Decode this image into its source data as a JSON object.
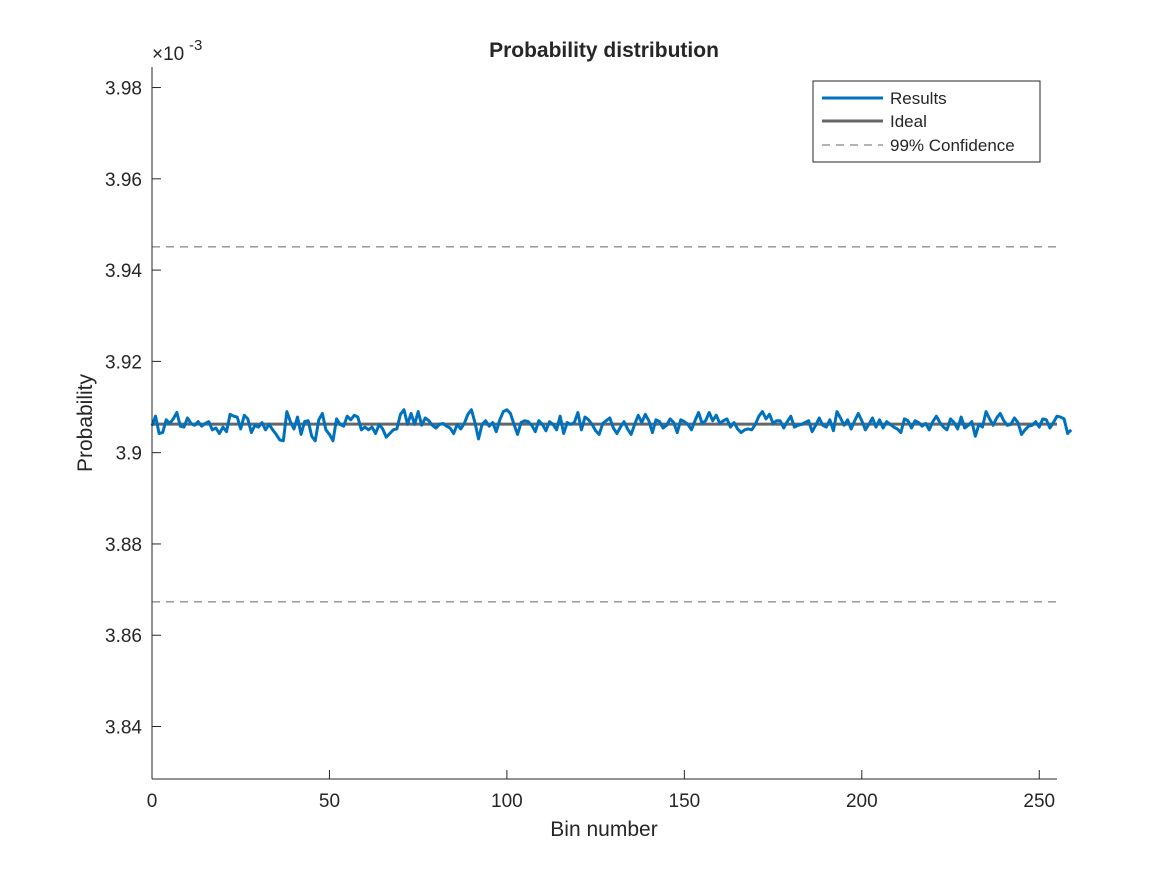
{
  "chart_data": {
    "type": "line",
    "title": "Probability distribution",
    "xlabel": "Bin number",
    "ylabel": "Probability",
    "y_exponent_base": "×10",
    "y_exponent": "-3",
    "xlim": [
      0,
      255
    ],
    "ylim": [
      3.8285,
      3.9845
    ],
    "x_ticks": [
      0,
      50,
      100,
      150,
      200,
      250
    ],
    "x_tick_labels": [
      "0",
      "50",
      "100",
      "150",
      "200",
      "250"
    ],
    "y_ticks": [
      3.84,
      3.86,
      3.88,
      3.9,
      3.92,
      3.94,
      3.96,
      3.98
    ],
    "y_tick_labels": [
      "3.84",
      "3.86",
      "3.88",
      "3.9",
      "3.92",
      "3.94",
      "3.96",
      "3.98"
    ],
    "grid": false,
    "legend_position": "top-right",
    "series": [
      {
        "name": "Results",
        "color": "#0072BD",
        "style": "solid",
        "x_start": 0,
        "x_step": 1,
        "values": [
          3.9059,
          3.908,
          3.9042,
          3.9044,
          3.9072,
          3.9064,
          3.9074,
          3.9088,
          3.9058,
          3.9056,
          3.9076,
          3.9064,
          3.906,
          3.9068,
          3.9058,
          3.9064,
          3.9068,
          3.905,
          3.9054,
          3.9042,
          3.9056,
          3.9046,
          3.9084,
          3.908,
          3.9078,
          3.9052,
          3.9082,
          3.9074,
          3.9044,
          3.906,
          3.9056,
          3.9066,
          3.905,
          3.9062,
          3.905,
          3.904,
          3.9028,
          3.9026,
          3.909,
          3.9068,
          3.9052,
          3.9078,
          3.904,
          3.9068,
          3.907,
          3.9036,
          3.9026,
          3.9072,
          3.9086,
          3.905,
          3.904,
          3.9026,
          3.9074,
          3.9062,
          3.9058,
          3.908,
          3.9072,
          3.9082,
          3.9078,
          3.905,
          3.9056,
          3.905,
          3.9056,
          3.9042,
          3.9062,
          3.9052,
          3.9034,
          3.9042,
          3.905,
          3.9052,
          3.9084,
          3.9094,
          3.9062,
          3.9086,
          3.9062,
          3.909,
          3.906,
          3.9076,
          3.907,
          3.906,
          3.9054,
          3.9062,
          3.9064,
          3.9058,
          3.9054,
          3.9042,
          3.9062,
          3.9052,
          3.9064,
          3.9084,
          3.9094,
          3.9066,
          3.903,
          3.9062,
          3.907,
          3.9058,
          3.9066,
          3.9046,
          3.9072,
          3.909,
          3.9094,
          3.9086,
          3.9062,
          3.904,
          3.9066,
          3.907,
          3.9068,
          3.906,
          3.9046,
          3.907,
          3.9062,
          3.9048,
          3.9068,
          3.9062,
          3.905,
          3.908,
          3.9042,
          3.9066,
          3.9062,
          3.9066,
          3.9088,
          3.905,
          3.9078,
          3.9072,
          3.9062,
          3.9048,
          3.904,
          3.9064,
          3.907,
          3.9076,
          3.9054,
          3.9042,
          3.9056,
          3.9068,
          3.9052,
          3.904,
          3.9062,
          3.9082,
          3.9066,
          3.9084,
          3.907,
          3.9044,
          3.9072,
          3.9068,
          3.9054,
          3.906,
          3.9074,
          3.9066,
          3.9044,
          3.9072,
          3.9068,
          3.9062,
          3.905,
          3.907,
          3.9088,
          3.9064,
          3.907,
          3.9088,
          3.907,
          3.9082,
          3.9064,
          3.907,
          3.9074,
          3.9056,
          3.9066,
          3.9052,
          3.9044,
          3.905,
          3.9052,
          3.905,
          3.9062,
          3.908,
          3.909,
          3.9074,
          3.9084,
          3.9064,
          3.907,
          3.907,
          3.9054,
          3.9068,
          3.908,
          3.9056,
          3.906,
          3.9062,
          3.9066,
          3.907,
          3.9046,
          3.906,
          3.9076,
          3.906,
          3.9056,
          3.9072,
          3.9048,
          3.909,
          3.9076,
          3.906,
          3.9072,
          3.9052,
          3.907,
          3.9086,
          3.907,
          3.905,
          3.9062,
          3.9076,
          3.9056,
          3.9072,
          3.9054,
          3.9068,
          3.9062,
          3.9056,
          3.9052,
          3.9044,
          3.9074,
          3.907,
          3.9054,
          3.907,
          3.9066,
          3.9058,
          3.9064,
          3.905,
          3.9068,
          3.908,
          3.9066,
          3.9056,
          3.905,
          3.9074,
          3.9066,
          3.9052,
          3.9078,
          3.9054,
          3.906,
          3.9068,
          3.9036,
          3.9062,
          3.9056,
          3.909,
          3.9074,
          3.906,
          3.9076,
          3.9086,
          3.907,
          3.906,
          3.9062,
          3.9076,
          3.9066,
          3.904,
          3.905,
          3.9058,
          3.906,
          3.9068,
          3.9056,
          3.9074,
          3.9072,
          3.9054,
          3.9066,
          3.908,
          3.9078,
          3.9074,
          3.9042,
          3.905
        ]
      },
      {
        "name": "Ideal",
        "color": "#666666",
        "style": "solid",
        "x": [
          0,
          255
        ],
        "values": [
          3.90625,
          3.90625
        ]
      },
      {
        "name": "99% Confidence",
        "color": "#666666",
        "style": "dashed",
        "upper": 3.9451,
        "lower": 3.8673
      }
    ]
  }
}
